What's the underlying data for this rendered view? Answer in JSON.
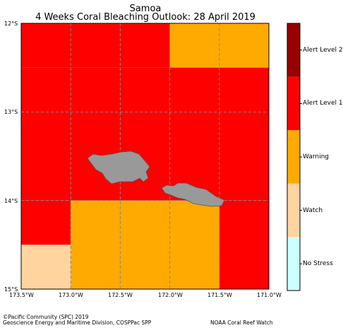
{
  "title": "Samoa",
  "subtitle": "4 Weeks Coral Bleaching Outlook: 28 April 2019",
  "map": {
    "lat_ticks": [
      "12°S",
      "13°S",
      "14°S",
      "15°S"
    ],
    "lon_ticks": [
      "173.5°W",
      "173.0°W",
      "172.5°W",
      "172.0°W",
      "171.5°W",
      "171.0°W"
    ],
    "land_color": "#999999",
    "grid_cells": [
      {
        "lon_w": 173.5,
        "lon_e": 172.0,
        "lat_n": 12.0,
        "lat_s": 12.5,
        "level": "Alert Level 1"
      },
      {
        "lon_w": 172.0,
        "lon_e": 171.0,
        "lat_n": 12.0,
        "lat_s": 12.5,
        "level": "Warning"
      },
      {
        "lon_w": 173.5,
        "lon_e": 171.0,
        "lat_n": 12.5,
        "lat_s": 14.0,
        "level": "Alert Level 1"
      },
      {
        "lon_w": 173.5,
        "lon_e": 173.0,
        "lat_n": 14.0,
        "lat_s": 14.5,
        "level": "Alert Level 1"
      },
      {
        "lon_w": 173.0,
        "lon_e": 171.5,
        "lat_n": 14.0,
        "lat_s": 15.0,
        "level": "Warning"
      },
      {
        "lon_w": 171.5,
        "lon_e": 171.0,
        "lat_n": 14.0,
        "lat_s": 15.0,
        "level": "Alert Level 1"
      },
      {
        "lon_w": 173.5,
        "lon_e": 173.0,
        "lat_n": 14.5,
        "lat_s": 15.0,
        "level": "Watch"
      }
    ]
  },
  "legend": [
    {
      "label": "Alert Level 2",
      "color": "#990000"
    },
    {
      "label": "Alert Level 1",
      "color": "#ff0000"
    },
    {
      "label": "Warning",
      "color": "#ffaa00"
    },
    {
      "label": "Watch",
      "color": "#ffd49f"
    },
    {
      "label": "No Stress",
      "color": "#ccffff"
    }
  ],
  "footer": {
    "copyright": "©Pacific Community (SPC) 2019",
    "division": "Geoscience Energy and Maritime Division, COSPPac SPP",
    "credit": "NOAA Coral Reef Watch"
  }
}
